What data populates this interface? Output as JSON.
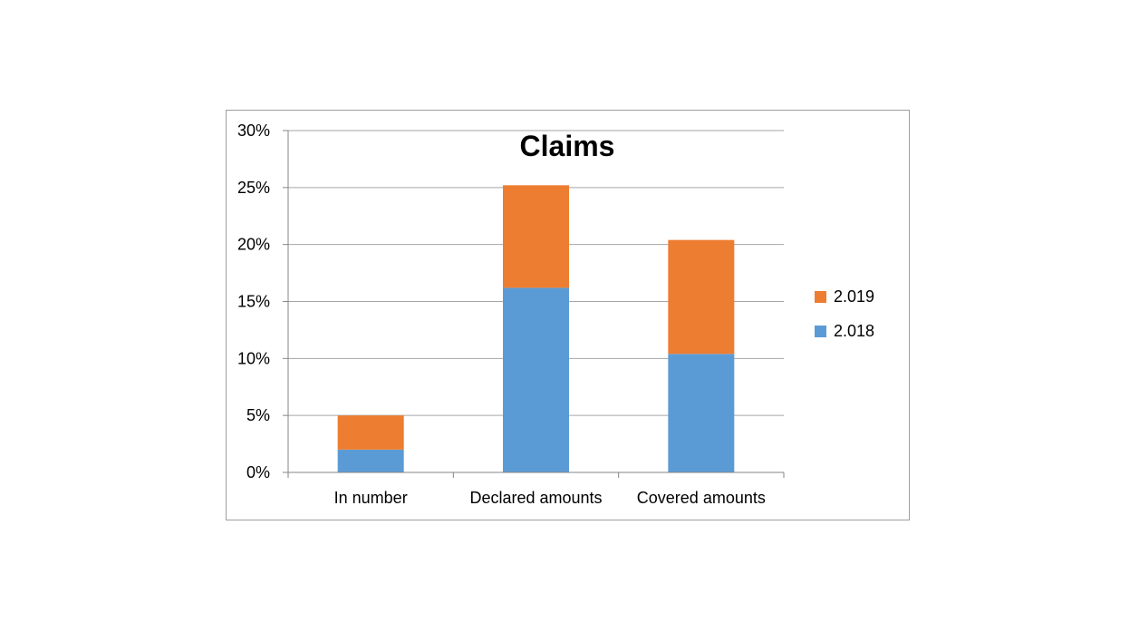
{
  "chart_data": {
    "type": "bar",
    "stacked": true,
    "title": "Claims",
    "xlabel": "",
    "ylabel": "",
    "categories": [
      "In number",
      "Declared amounts",
      "Covered amounts"
    ],
    "series": [
      {
        "name": "2.018",
        "color": "#5b9bd5",
        "values": [
          2.0,
          16.2,
          10.4
        ]
      },
      {
        "name": "2.019",
        "color": "#ed7d31",
        "values": [
          3.0,
          9.0,
          10.0
        ]
      }
    ],
    "ylim": [
      0,
      30
    ],
    "yticks": [
      0,
      5,
      10,
      15,
      20,
      25,
      30
    ],
    "ytick_labels": [
      "0%",
      "5%",
      "10%",
      "15%",
      "20%",
      "25%",
      "30%"
    ],
    "grid": true,
    "legend_position": "right",
    "legend_order": [
      "2.019",
      "2.018"
    ]
  }
}
